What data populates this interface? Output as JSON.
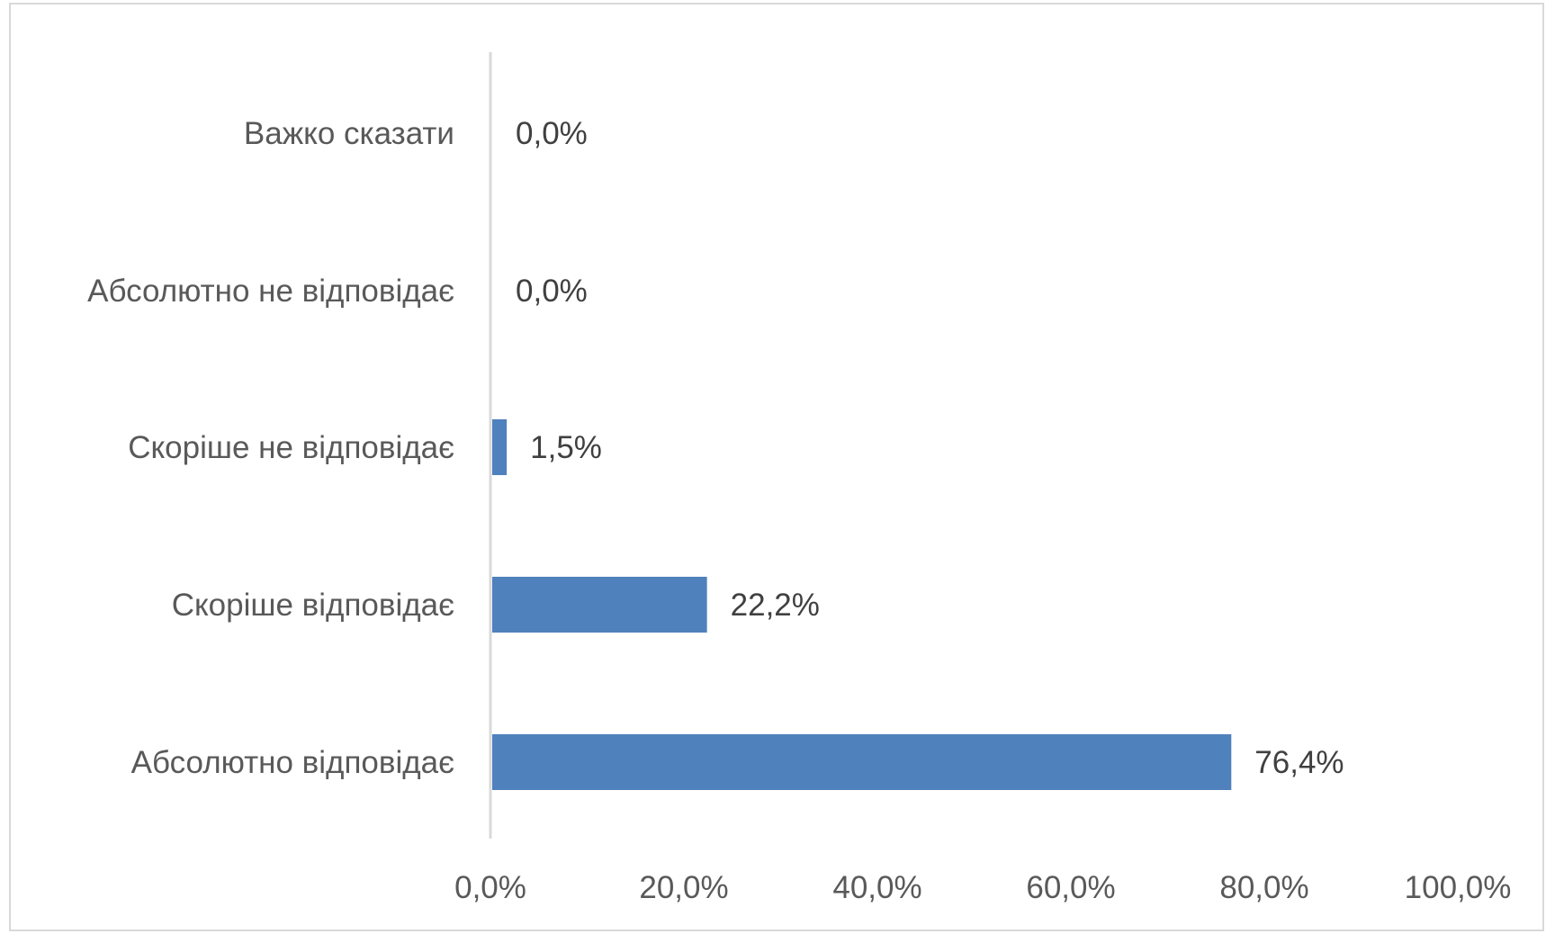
{
  "chart_data": {
    "type": "bar",
    "orientation": "horizontal",
    "categories": [
      "Важко сказати",
      "Абсолютно не відповідає",
      "Скоріше не відповідає",
      "Скоріше відповідає",
      "Абсолютно відповідає"
    ],
    "values": [
      0.0,
      0.0,
      1.5,
      22.2,
      76.4
    ],
    "value_labels": [
      "0,0%",
      "0,0%",
      "1,5%",
      "22,2%",
      "76,4%"
    ],
    "x_ticks": [
      "0,0%",
      "20,0%",
      "40,0%",
      "60,0%",
      "80,0%",
      "100,0%"
    ],
    "xlim": [
      0,
      100
    ],
    "grid": false,
    "legend": "none",
    "bar_color": "#4f81bd",
    "axis_color": "#d9d9d9"
  }
}
